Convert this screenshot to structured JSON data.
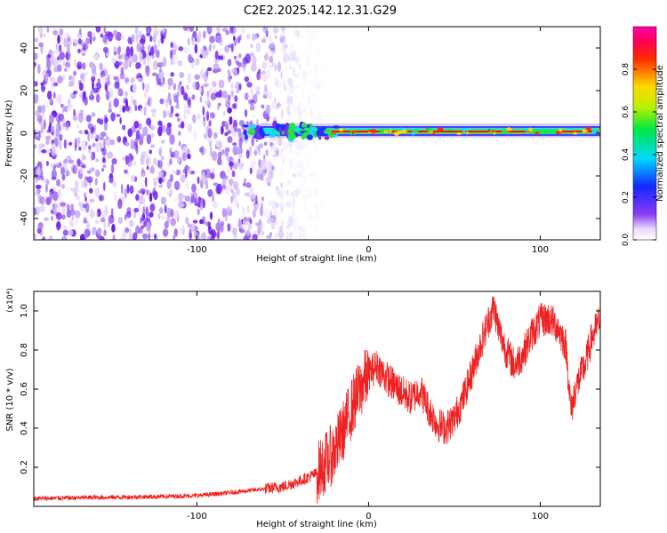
{
  "title": "C2E2.2025.142.12.31.G29",
  "colors": {
    "snr_line": "#ee2222",
    "spectrogram_noise": "#7a2cf0",
    "ridge_core": "#cc0033"
  },
  "colorbar": {
    "label": "Normalized spectral amplitude",
    "range": [
      0,
      1
    ],
    "ticks": [
      "0.0",
      "0.2",
      "0.4",
      "0.6",
      "0.8"
    ],
    "colormap": "rainbow (white-purple-blue-cyan-green-yellow-red-magenta)"
  },
  "chart_data": [
    {
      "type": "heatmap",
      "xlabel": "Height of straight line (km)",
      "ylabel": "Frequency (Hz)",
      "xlim": [
        -195,
        135
      ],
      "ylim": [
        -50,
        50
      ],
      "xticks": [
        -100,
        0,
        100
      ],
      "xtick_labels": [
        "-100",
        "0",
        "100"
      ],
      "yticks": [
        -40,
        -20,
        0,
        20,
        40
      ],
      "ytick_labels": [
        "-40",
        "-20",
        "0",
        "20",
        "40"
      ],
      "grid": false,
      "noise_region_x": [
        -195,
        -35
      ],
      "ridge": {
        "frequency_hz": 0,
        "x_start": -72,
        "x_end": 135,
        "strong_segments": [
          [
            -22,
            8
          ],
          [
            0,
            97
          ],
          [
            110,
            135
          ]
        ]
      }
    },
    {
      "type": "line",
      "xlabel": "Height of straight line (km)",
      "ylabel": "SNR (10 * v/v)",
      "y_scale_label": "(x10⁴)",
      "xlim": [
        -195,
        135
      ],
      "ylim": [
        0,
        1.1
      ],
      "xticks": [
        -100,
        0,
        100
      ],
      "xtick_labels": [
        "-100",
        "0",
        "100"
      ],
      "yticks": [
        0.2,
        0.4,
        0.6,
        0.8,
        1.0
      ],
      "ytick_labels": [
        "0.2",
        "0.4",
        "0.6",
        "0.8",
        "1.0"
      ],
      "grid": false,
      "series": [
        {
          "x": [
            -195,
            -160,
            -120,
            -100,
            -80,
            -60,
            -50,
            -40,
            -30,
            -20,
            -15,
            -10,
            -5,
            0,
            5,
            10,
            15,
            20,
            25,
            30,
            35,
            40,
            45,
            50,
            55,
            60,
            65,
            70,
            73,
            76,
            80,
            85,
            90,
            95,
            100,
            105,
            110,
            115,
            118,
            120,
            123,
            126,
            130,
            135
          ],
          "y": [
            0.04,
            0.045,
            0.05,
            0.055,
            0.07,
            0.09,
            0.1,
            0.13,
            0.17,
            0.28,
            0.38,
            0.5,
            0.6,
            0.68,
            0.72,
            0.66,
            0.62,
            0.58,
            0.55,
            0.6,
            0.5,
            0.42,
            0.4,
            0.45,
            0.55,
            0.68,
            0.82,
            0.95,
            1.02,
            0.9,
            0.8,
            0.72,
            0.78,
            0.88,
            0.95,
            0.96,
            0.92,
            0.82,
            0.48,
            0.58,
            0.66,
            0.72,
            0.86,
            0.96
          ]
        }
      ]
    }
  ]
}
